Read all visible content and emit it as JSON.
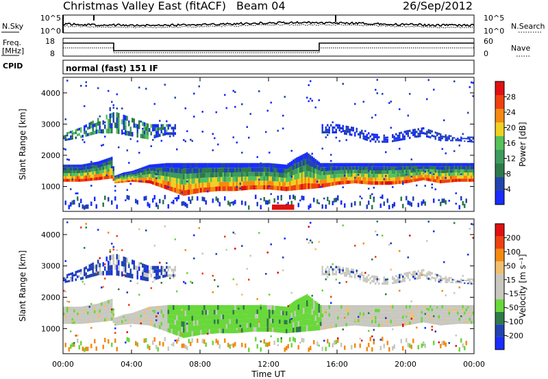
{
  "header": {
    "title": "Christmas Valley East (fitACF)",
    "beam": "Beam 04",
    "date": "26/Sep/2012"
  },
  "noise_panel": {
    "left_label": "N.Sky",
    "left_ticks": [
      "10^5",
      "10^0"
    ],
    "right_label": "N.Search",
    "right_ticks": [
      "10^5",
      "10^0"
    ]
  },
  "freq_panel": {
    "left_label_1": "Freq.",
    "left_label_2": "[MHz]",
    "left_ticks": [
      "18",
      "8"
    ],
    "right_label": "Nave",
    "right_ticks": [
      "60",
      "0"
    ]
  },
  "cpid": {
    "label": "CPID",
    "text": "normal (fast) 151 IF"
  },
  "colors": {
    "power": [
      "#1a2cff",
      "#2244b0",
      "#2e7a4a",
      "#3e9b5e",
      "#55c25a",
      "#f0d020",
      "#f58a10",
      "#f04010",
      "#e01010"
    ],
    "velocity": [
      "#e01010",
      "#f04010",
      "#f58a10",
      "#f0c070",
      "#c8c8c0",
      "#c8c8c0",
      "#68d83a",
      "#2e7a4a",
      "#2244b0",
      "#1a2cff"
    ]
  },
  "chart_data": [
    {
      "type": "heatmap",
      "name": "power",
      "ylabel": "Slant Range [km]",
      "yticks": [
        "1000",
        "2000",
        "3000",
        "4000"
      ],
      "ylim": [
        200,
        4500
      ],
      "colorbar_label": "Power [dB]",
      "colorbar_ticks": [
        "4",
        "8",
        "12",
        "16",
        "20",
        "24",
        "28"
      ],
      "main_band_upper_km": [
        [
          0,
          1700
        ],
        [
          1,
          1700
        ],
        [
          2,
          1800
        ],
        [
          2.8,
          1950
        ],
        [
          3,
          1350
        ],
        [
          3.5,
          1450
        ],
        [
          4,
          1500
        ],
        [
          5,
          1700
        ],
        [
          6,
          1750
        ],
        [
          7,
          1750
        ],
        [
          8,
          1750
        ],
        [
          9,
          1750
        ],
        [
          10,
          1750
        ],
        [
          11,
          1750
        ],
        [
          12,
          1750
        ],
        [
          13,
          1700
        ],
        [
          13.5,
          1900
        ],
        [
          14.2,
          2100
        ],
        [
          15,
          1750
        ],
        [
          17,
          1750
        ],
        [
          19,
          1750
        ],
        [
          21,
          1750
        ],
        [
          24,
          1750
        ]
      ],
      "main_band_lower_km": [
        [
          0,
          1150
        ],
        [
          1,
          1150
        ],
        [
          2,
          1200
        ],
        [
          2.8,
          1250
        ],
        [
          3,
          1100
        ],
        [
          4,
          1150
        ],
        [
          5,
          1100
        ],
        [
          6,
          900
        ],
        [
          7,
          700
        ],
        [
          8,
          800
        ],
        [
          9,
          850
        ],
        [
          10,
          850
        ],
        [
          11,
          900
        ],
        [
          12,
          900
        ],
        [
          13,
          850
        ],
        [
          14,
          900
        ],
        [
          15,
          950
        ],
        [
          16,
          1050
        ],
        [
          17,
          1100
        ],
        [
          18,
          1050
        ],
        [
          19,
          1050
        ],
        [
          20,
          1100
        ],
        [
          21,
          1200
        ],
        [
          22,
          1100
        ],
        [
          23,
          1150
        ],
        [
          24,
          1150
        ]
      ],
      "upper_band_lower_km": [
        [
          0,
          2450
        ],
        [
          1,
          2550
        ],
        [
          2,
          2700
        ],
        [
          3,
          2700
        ],
        [
          4,
          2600
        ],
        [
          5,
          2500
        ],
        [
          6,
          2650
        ],
        [
          15,
          2700
        ],
        [
          16,
          2700
        ],
        [
          17,
          2600
        ],
        [
          18,
          2400
        ],
        [
          19,
          2400
        ],
        [
          20,
          2500
        ],
        [
          21,
          2600
        ],
        [
          22,
          2450
        ],
        [
          23,
          2450
        ],
        [
          24,
          2400
        ]
      ],
      "upper_band_upper_km": [
        [
          0,
          2700
        ],
        [
          1,
          2900
        ],
        [
          2,
          3200
        ],
        [
          3,
          3400
        ],
        [
          4,
          3200
        ],
        [
          5,
          3000
        ],
        [
          6,
          3000
        ],
        [
          15,
          3000
        ],
        [
          16,
          3000
        ],
        [
          17,
          2900
        ],
        [
          18,
          2700
        ],
        [
          19,
          2650
        ],
        [
          20,
          2800
        ],
        [
          21,
          2900
        ],
        [
          22,
          2700
        ],
        [
          23,
          2600
        ],
        [
          24,
          2600
        ]
      ]
    },
    {
      "type": "heatmap",
      "name": "velocity",
      "ylabel": "Slant Range [km]",
      "yticks": [
        "1000",
        "2000",
        "3000",
        "4000"
      ],
      "ylim": [
        200,
        4500
      ],
      "xlabel": "Time UT",
      "xticks": [
        "00:00",
        "04:00",
        "08:00",
        "12:00",
        "16:00",
        "20:00",
        "00:00"
      ],
      "xlim": [
        0,
        24
      ],
      "colorbar_label": "Velocity [m s⁻¹]",
      "colorbar_ticks": [
        "200",
        "100",
        "50",
        "15",
        "-15",
        "-50",
        "-100",
        "-200"
      ]
    }
  ]
}
